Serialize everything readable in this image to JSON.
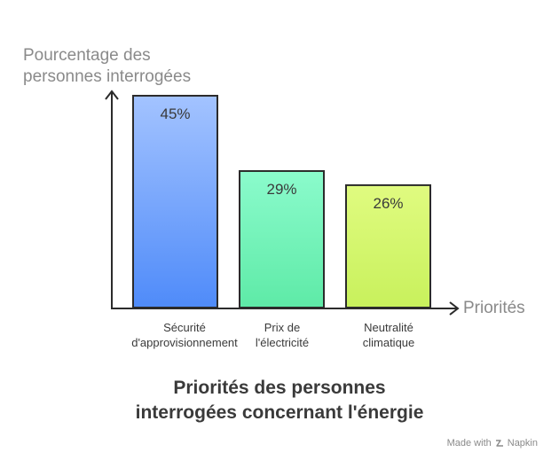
{
  "chart_data": {
    "type": "bar",
    "title_lines": [
      "Priorités des personnes",
      "interrogées concernant l'énergie"
    ],
    "ylabel_lines": [
      "Pourcentage des",
      "personnes interrogées"
    ],
    "xlabel": "Priorités",
    "categories": [
      [
        "Sécurité",
        "d'approvisionnement"
      ],
      [
        "Prix de",
        "l'électricité"
      ],
      [
        "Neutralité",
        "climatique"
      ]
    ],
    "values": [
      45,
      29,
      26
    ],
    "value_labels": [
      "45%",
      "29%",
      "26%"
    ],
    "ylim": [
      0,
      45
    ],
    "bar_colors": [
      {
        "top": "#a3c3ff",
        "bottom": "#4f8bf9"
      },
      {
        "top": "#8bfbcc",
        "bottom": "#5eeaa7"
      },
      {
        "top": "#e0fb80",
        "bottom": "#c8f15c"
      }
    ],
    "grid": false,
    "legend": "none"
  },
  "footer": {
    "text": "Made with",
    "brand": "Napkin",
    "icon": "napkin-logo-icon"
  }
}
